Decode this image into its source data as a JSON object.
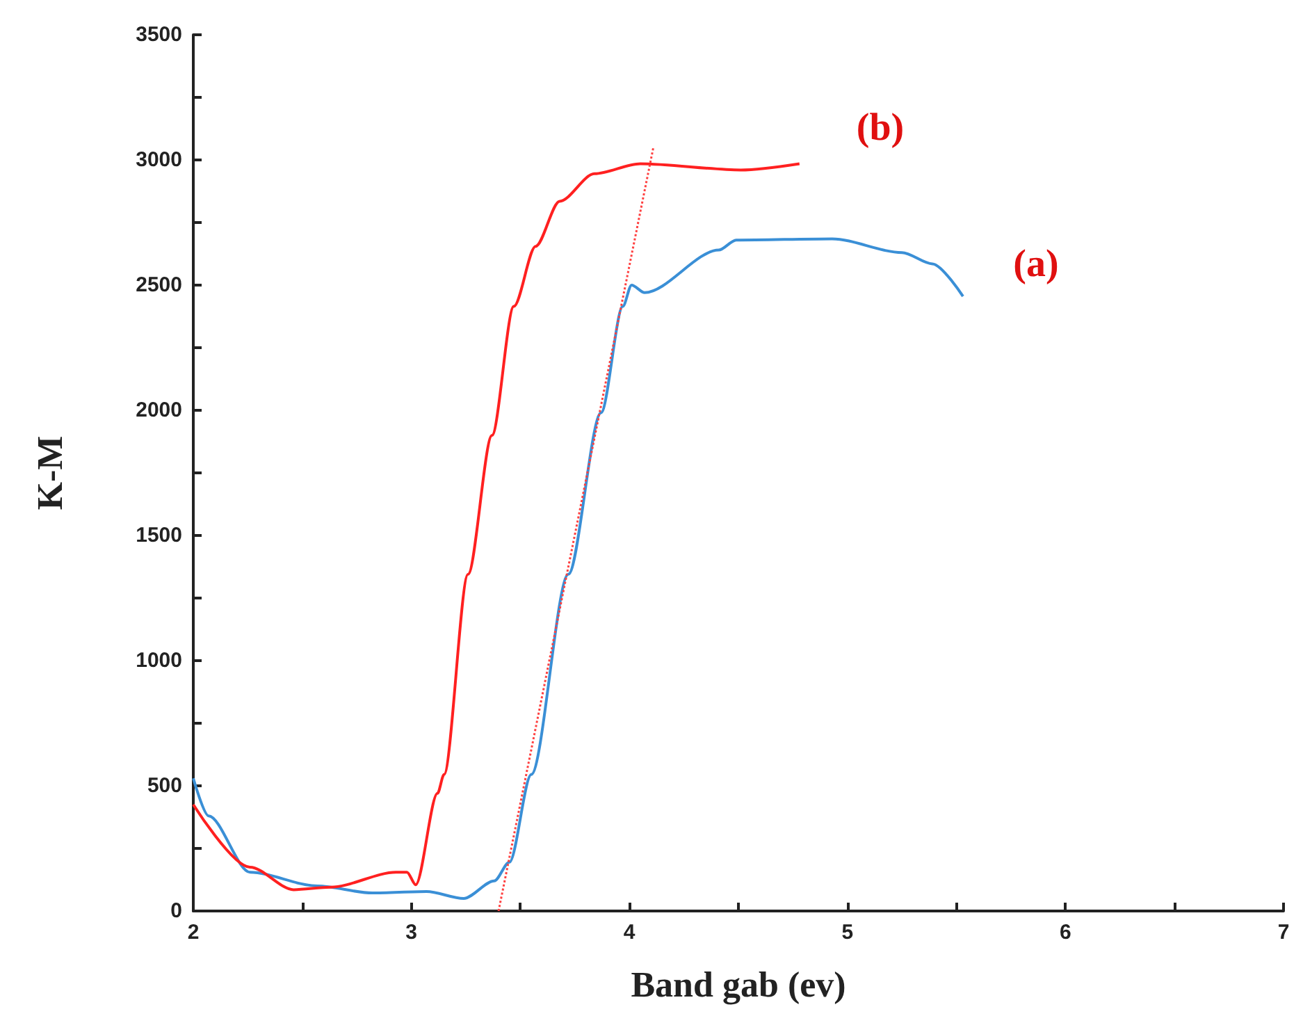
{
  "chart_data": {
    "type": "line",
    "xlabel": "Band gab (ev)",
    "ylabel": "K-M",
    "xlim": [
      2,
      7
    ],
    "xticks": [
      2,
      {
        "value": 2.5,
        "label": null
      },
      3,
      {
        "value": 3.5,
        "label": null
      },
      4,
      {
        "value": 4.5,
        "label": null
      },
      5,
      {
        "value": 5.5,
        "label": null
      },
      6,
      {
        "value": 6.5,
        "label": null
      },
      7
    ],
    "ylim": [
      0,
      3500
    ],
    "yticks": [
      0,
      {
        "value": 250,
        "label": null
      },
      500,
      {
        "value": 750,
        "label": null
      },
      1000,
      {
        "value": 1250,
        "label": null
      },
      1500,
      {
        "value": 1750,
        "label": null
      },
      2000,
      {
        "value": 2250,
        "label": null
      },
      2500,
      {
        "value": 2750,
        "label": null
      },
      3000,
      {
        "value": 3250,
        "label": null
      },
      3500
    ],
    "grid": false,
    "marker": "none",
    "series": [
      {
        "color": "#3a8fd6",
        "line_style": "solid",
        "x": [
          2.0,
          2.07,
          2.26,
          2.57,
          2.82,
          3.07,
          3.24,
          3.38,
          3.45,
          3.55,
          3.72,
          3.87,
          3.97,
          4.01,
          4.07,
          4.41,
          4.49,
          4.93,
          5.25,
          5.39,
          5.53
        ],
        "values": [
          530,
          380,
          155,
          100,
          72,
          78,
          50,
          120,
          195,
          545,
          1345,
          1990,
          2415,
          2500,
          2470,
          2640,
          2680,
          2685,
          2630,
          2585,
          2455
        ]
      },
      {
        "color": "#ff2020",
        "line_style": "solid",
        "x": [
          2.0,
          2.26,
          2.46,
          2.63,
          2.93,
          2.98,
          3.02,
          3.12,
          3.15,
          3.26,
          3.37,
          3.47,
          3.57,
          3.68,
          3.84,
          4.05,
          4.51,
          4.78
        ],
        "values": [
          425,
          175,
          85,
          95,
          155,
          155,
          105,
          470,
          545,
          1345,
          1900,
          2415,
          2655,
          2835,
          2945,
          2985,
          2960,
          2985
        ]
      },
      {
        "color": "#ff4040",
        "line_style": "dotted",
        "x": [
          3.4,
          4.11
        ],
        "values": [
          0,
          3050
        ]
      }
    ],
    "annotations": [
      "(a)",
      "(b)"
    ]
  }
}
